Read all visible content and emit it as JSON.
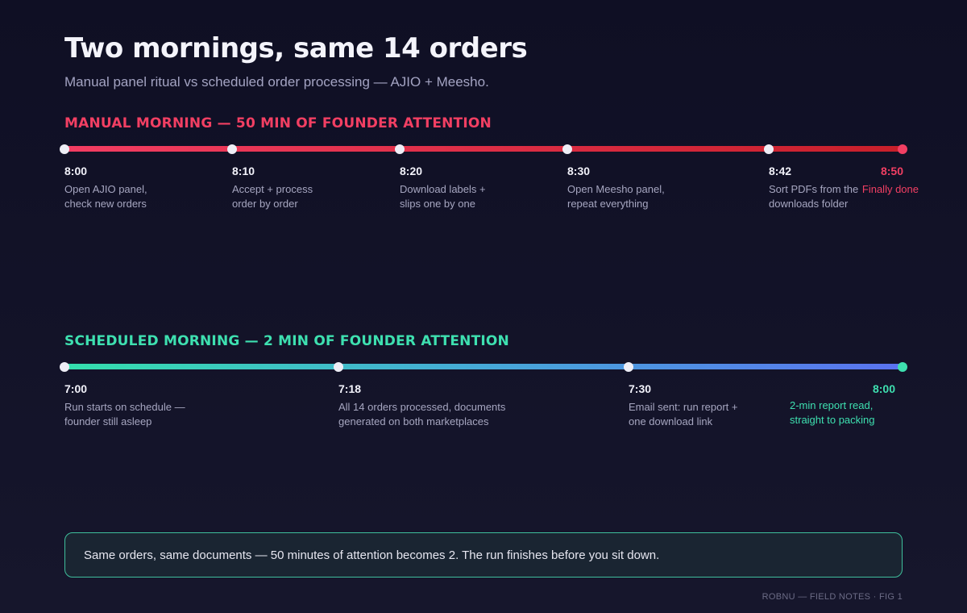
{
  "title": "Two mornings, same 14 orders",
  "subtitle": "Manual panel ritual vs scheduled order processing — AJIO + Meesho.",
  "manual": {
    "heading": "MANUAL MORNING — 50 MIN OF FOUNDER ATTENTION",
    "color": "#f23f63",
    "stops": [
      {
        "time": "8:00",
        "text": "Open AJIO panel,\ncheck new orders"
      },
      {
        "time": "8:10",
        "text": "Accept + process\norder by order"
      },
      {
        "time": "8:20",
        "text": "Download labels +\nslips one by one"
      },
      {
        "time": "8:30",
        "text": "Open Meesho panel,\nrepeat everything"
      },
      {
        "time": "8:42",
        "text": "Sort PDFs from the\ndownloads folder"
      }
    ],
    "final": {
      "time": "8:50",
      "text": "Finally done"
    }
  },
  "scheduled": {
    "heading": "SCHEDULED MORNING — 2 MIN OF FOUNDER ATTENTION",
    "color": "#3ee0b0",
    "stops": [
      {
        "time": "7:00",
        "text": "Run starts on schedule —\nfounder still asleep"
      },
      {
        "time": "7:18",
        "text": "All 14 orders processed, documents\ngenerated on both marketplaces"
      },
      {
        "time": "7:30",
        "text": "Email sent: run report +\none download link"
      }
    ],
    "final": {
      "time": "8:00",
      "text": "2-min report read,\nstraight to packing"
    }
  },
  "callout": "Same orders, same documents — 50 minutes of attention becomes 2. The run finishes before you sit down.",
  "footer": "ROBNU — FIELD NOTES · FIG 1"
}
